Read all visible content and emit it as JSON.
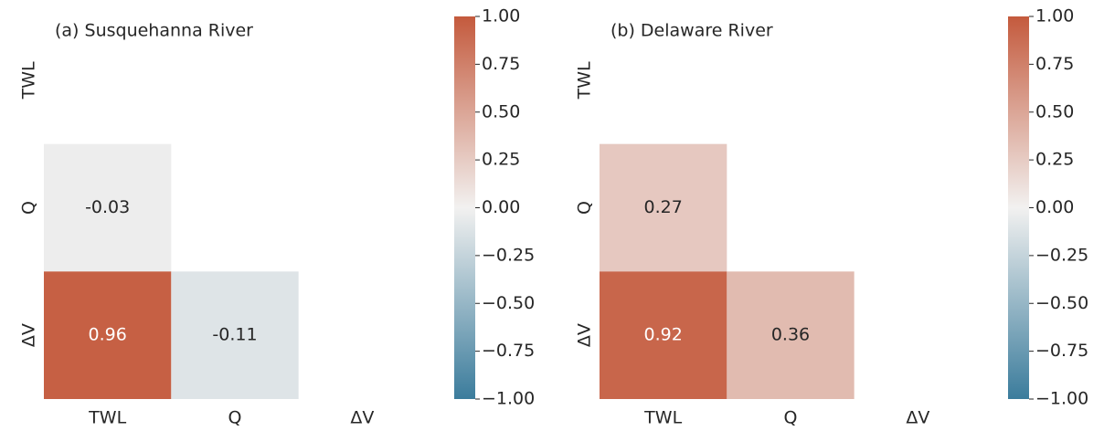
{
  "chart_data": [
    {
      "type": "heatmap",
      "title": "(a) Susquehanna River",
      "x": [
        "TWL",
        "Q",
        "ΔV"
      ],
      "y": [
        "TWL",
        "Q",
        "ΔV"
      ],
      "values": [
        [
          null,
          null,
          null
        ],
        [
          -0.03,
          null,
          null
        ],
        [
          0.96,
          -0.11,
          null
        ]
      ],
      "colormap": [
        "#3b7c9c",
        "#f2f1f0",
        "#c45a3d"
      ],
      "clim": [
        -1,
        1
      ],
      "cticks": [
        {
          "value": -1,
          "label": "−1.00"
        },
        {
          "value": -0.75,
          "label": "−0.75"
        },
        {
          "value": -0.5,
          "label": "−0.50"
        },
        {
          "value": -0.25,
          "label": "−0.25"
        },
        {
          "value": 0,
          "label": "0.00"
        },
        {
          "value": 0.25,
          "label": "0.25"
        },
        {
          "value": 0.5,
          "label": "0.50"
        },
        {
          "value": 0.75,
          "label": "0.75"
        },
        {
          "value": 1,
          "label": "1.00"
        }
      ]
    },
    {
      "type": "heatmap",
      "title": "(b) Delaware River",
      "x": [
        "TWL",
        "Q",
        "ΔV"
      ],
      "y": [
        "TWL",
        "Q",
        "ΔV"
      ],
      "values": [
        [
          null,
          null,
          null
        ],
        [
          0.27,
          null,
          null
        ],
        [
          0.92,
          0.36,
          null
        ]
      ],
      "colormap": [
        "#3b7c9c",
        "#f2f1f0",
        "#c45a3d"
      ],
      "clim": [
        -1,
        1
      ],
      "cticks": [
        {
          "value": -1,
          "label": "−1.00"
        },
        {
          "value": -0.75,
          "label": "−0.75"
        },
        {
          "value": -0.5,
          "label": "−0.50"
        },
        {
          "value": -0.25,
          "label": "−0.25"
        },
        {
          "value": 0,
          "label": "0.00"
        },
        {
          "value": 0.25,
          "label": "0.25"
        },
        {
          "value": 0.5,
          "label": "0.50"
        },
        {
          "value": 0.75,
          "label": "0.75"
        },
        {
          "value": 1,
          "label": "1.00"
        }
      ]
    }
  ]
}
